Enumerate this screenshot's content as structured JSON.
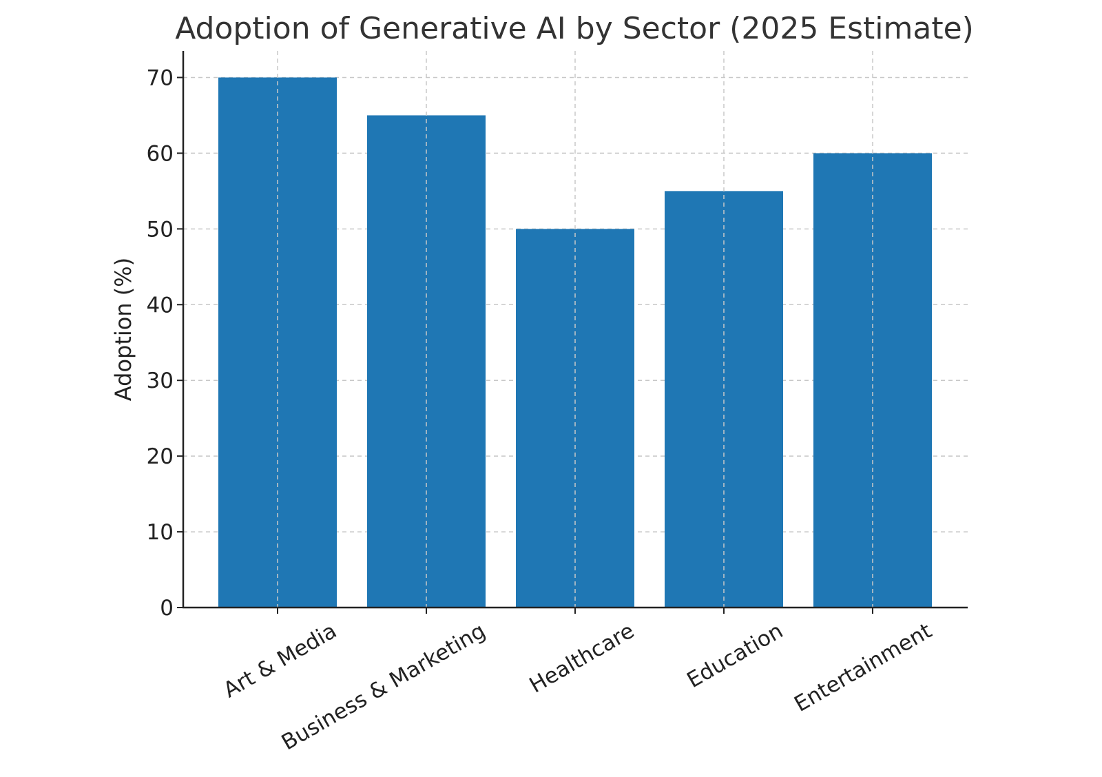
{
  "chart_data": {
    "type": "bar",
    "title": "Adoption of Generative AI by Sector (2025 Estimate)",
    "xlabel": "",
    "ylabel": "Adoption (%)",
    "categories": [
      "Art & Media",
      "Business & Marketing",
      "Healthcare",
      "Education",
      "Entertainment"
    ],
    "values": [
      70,
      65,
      50,
      55,
      60
    ],
    "ylim": [
      0,
      73.5
    ],
    "yticks": [
      0,
      10,
      20,
      30,
      40,
      50,
      60,
      70
    ],
    "grid": true,
    "bar_color": "#1f77b4"
  }
}
